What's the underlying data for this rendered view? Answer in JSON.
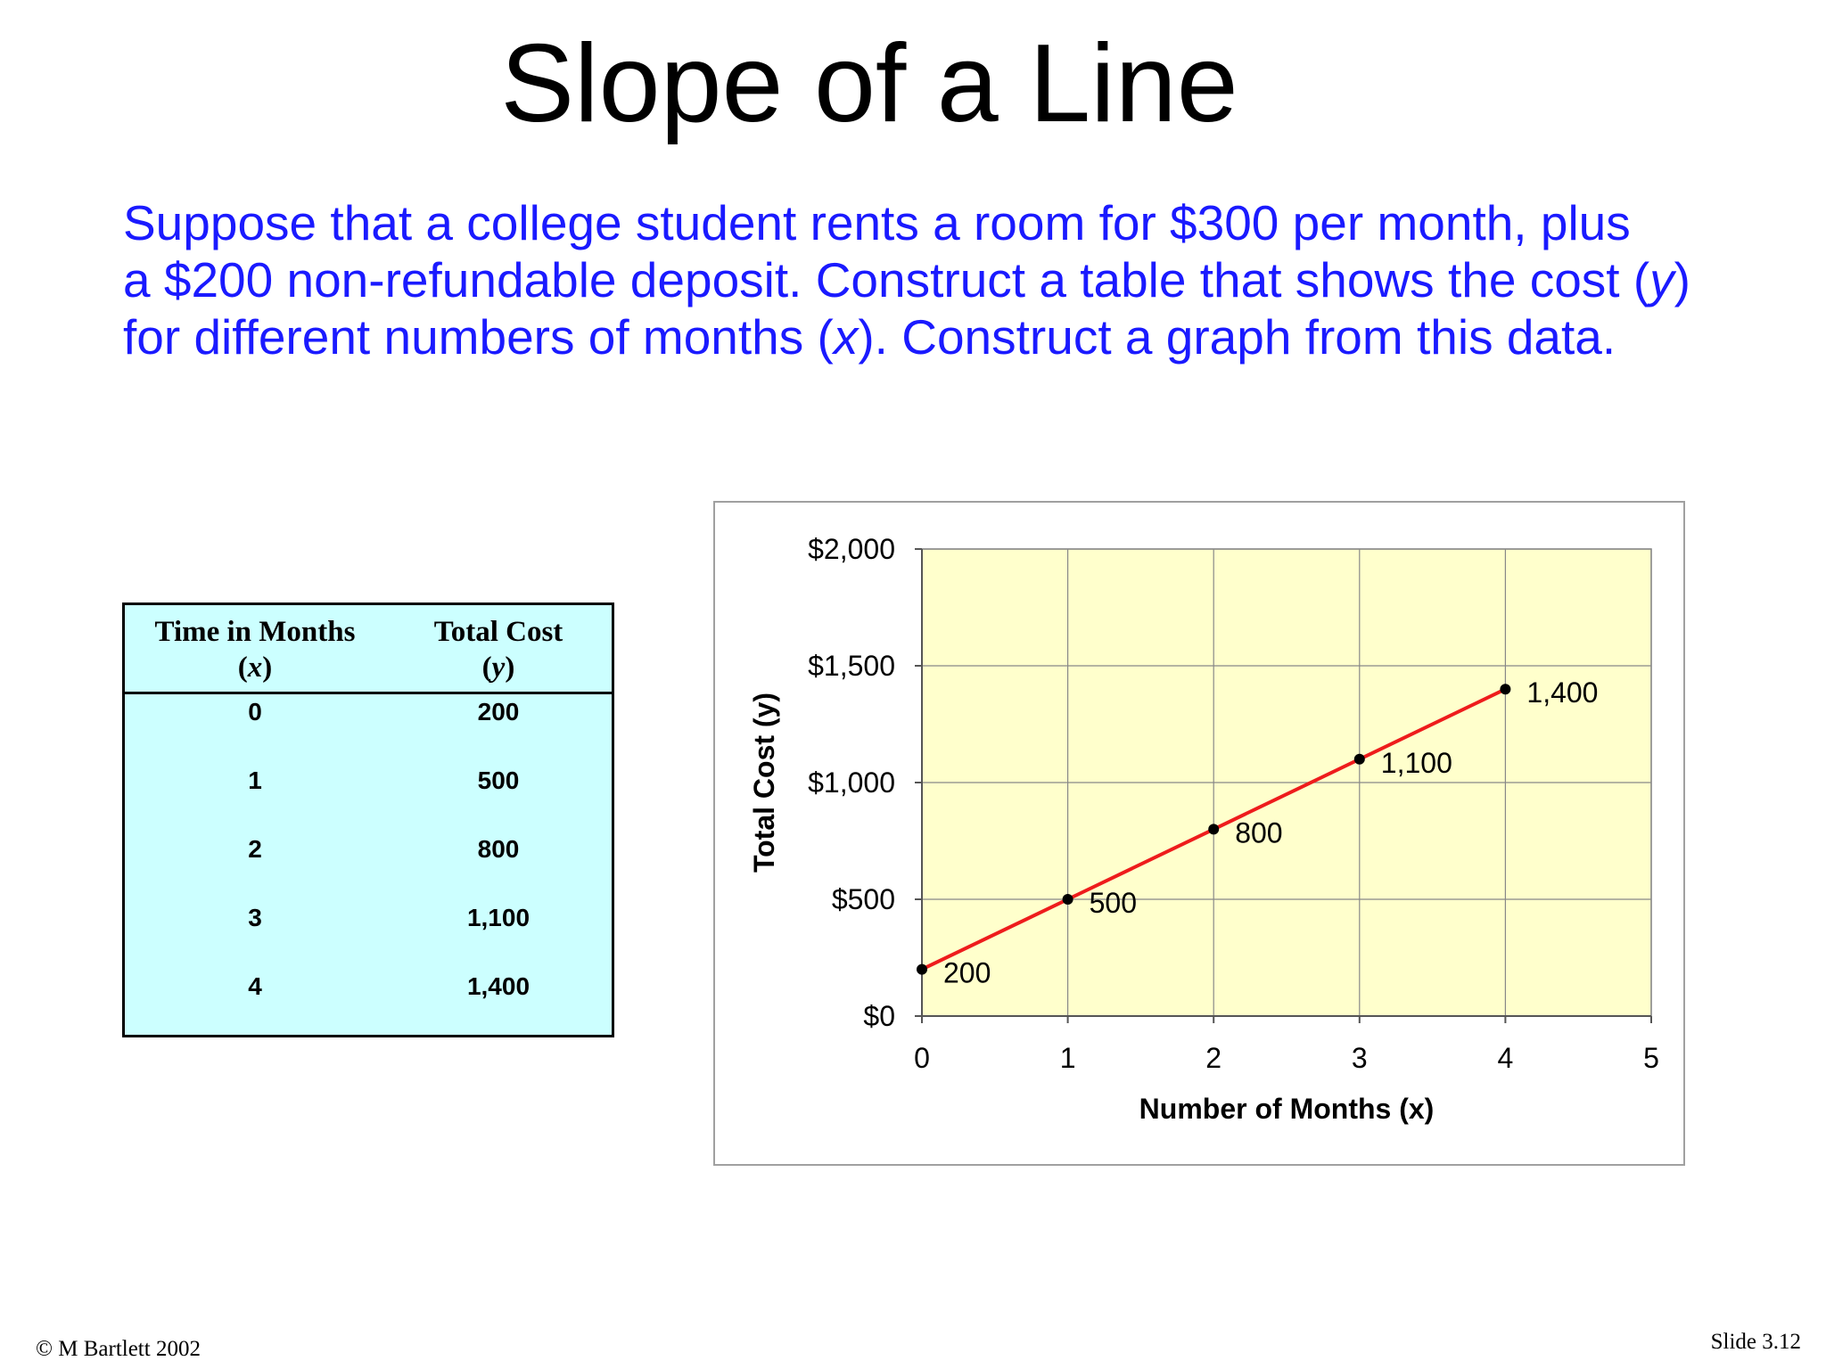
{
  "slide": {
    "title": "Slope of a Line",
    "problem_lines": [
      {
        "parts": [
          {
            "t": "Suppose that a college student rents a room for $300 per month, plus"
          }
        ]
      },
      {
        "parts": [
          {
            "t": "a $200 non-refundable deposit. Construct a table that shows the cost ("
          },
          {
            "t": "y",
            "i": true
          },
          {
            "t": ")"
          }
        ]
      },
      {
        "parts": [
          {
            "t": "for different numbers of months ("
          },
          {
            "t": "x",
            "i": true
          },
          {
            "t": "). Construct a graph from this data."
          }
        ]
      }
    ],
    "footer_left": "© M Bartlett 2002",
    "footer_right": "Slide 3.12"
  },
  "table": {
    "header_x": {
      "line1": "Time in Months",
      "line2_open": "(",
      "line2_var": "x",
      "line2_close": ")"
    },
    "header_y": {
      "line1": "Total Cost",
      "line2_open": "(",
      "line2_var": "y",
      "line2_close": ")"
    },
    "rows": [
      {
        "x": "0",
        "y": "200"
      },
      {
        "x": "1",
        "y": "500"
      },
      {
        "x": "2",
        "y": "800"
      },
      {
        "x": "3",
        "y": "1,100"
      },
      {
        "x": "4",
        "y": "1,400"
      }
    ]
  },
  "chart_data": {
    "type": "line",
    "x": [
      0,
      1,
      2,
      3,
      4
    ],
    "series": [
      {
        "values": [
          200,
          500,
          800,
          1100,
          1400
        ],
        "labels": [
          "200",
          "500",
          "800",
          "1,100",
          "1,400"
        ],
        "color": "#ee1c1c"
      }
    ],
    "xlabel": "Number of Months (x)",
    "ylabel": "Total Cost (y)",
    "xlim": [
      0,
      5
    ],
    "ylim": [
      0,
      2000
    ],
    "x_ticks": [
      0,
      1,
      2,
      3,
      4,
      5
    ],
    "x_tick_labels": [
      "0",
      "1",
      "2",
      "3",
      "4",
      "5"
    ],
    "y_ticks": [
      0,
      500,
      1000,
      1500,
      2000
    ],
    "y_tick_labels": [
      "$0",
      "$500",
      "$1,000",
      "$1,500",
      "$2,000"
    ],
    "grid": true,
    "plot_background": "#ffffcc",
    "line_color": "#ee1c1c",
    "marker_color": "#000000"
  }
}
